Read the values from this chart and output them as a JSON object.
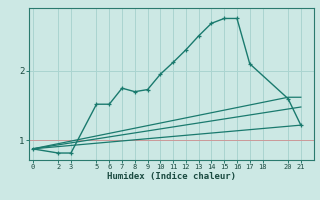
{
  "xlabel": "Humidex (Indice chaleur)",
  "bg_color": "#cce8e4",
  "grid_color": "#aad4d0",
  "line_color": "#1a7a6e",
  "spine_color": "#2a7a6e",
  "ref_line_color": "#cc9999",
  "xticks": [
    0,
    2,
    3,
    5,
    6,
    7,
    8,
    9,
    10,
    11,
    12,
    13,
    14,
    15,
    16,
    17,
    18,
    20,
    21
  ],
  "yticks": [
    1,
    2
  ],
  "ylim": [
    0.72,
    2.9
  ],
  "xlim": [
    -0.3,
    22.0
  ],
  "curve1_x": [
    0,
    2,
    3,
    5,
    6,
    7,
    8,
    9,
    10,
    11,
    12,
    13,
    14,
    15,
    16,
    17,
    20,
    21
  ],
  "curve1_y": [
    0.88,
    0.82,
    0.82,
    1.52,
    1.52,
    1.75,
    1.7,
    1.73,
    1.95,
    2.12,
    2.3,
    2.5,
    2.68,
    2.75,
    2.75,
    2.1,
    1.6,
    1.22
  ],
  "curve2_x": [
    0,
    20,
    21
  ],
  "curve2_y": [
    0.88,
    1.62,
    1.62
  ],
  "curve3_x": [
    0,
    21
  ],
  "curve3_y": [
    0.88,
    1.48
  ],
  "curve4_x": [
    0,
    21
  ],
  "curve4_y": [
    0.88,
    1.22
  ]
}
